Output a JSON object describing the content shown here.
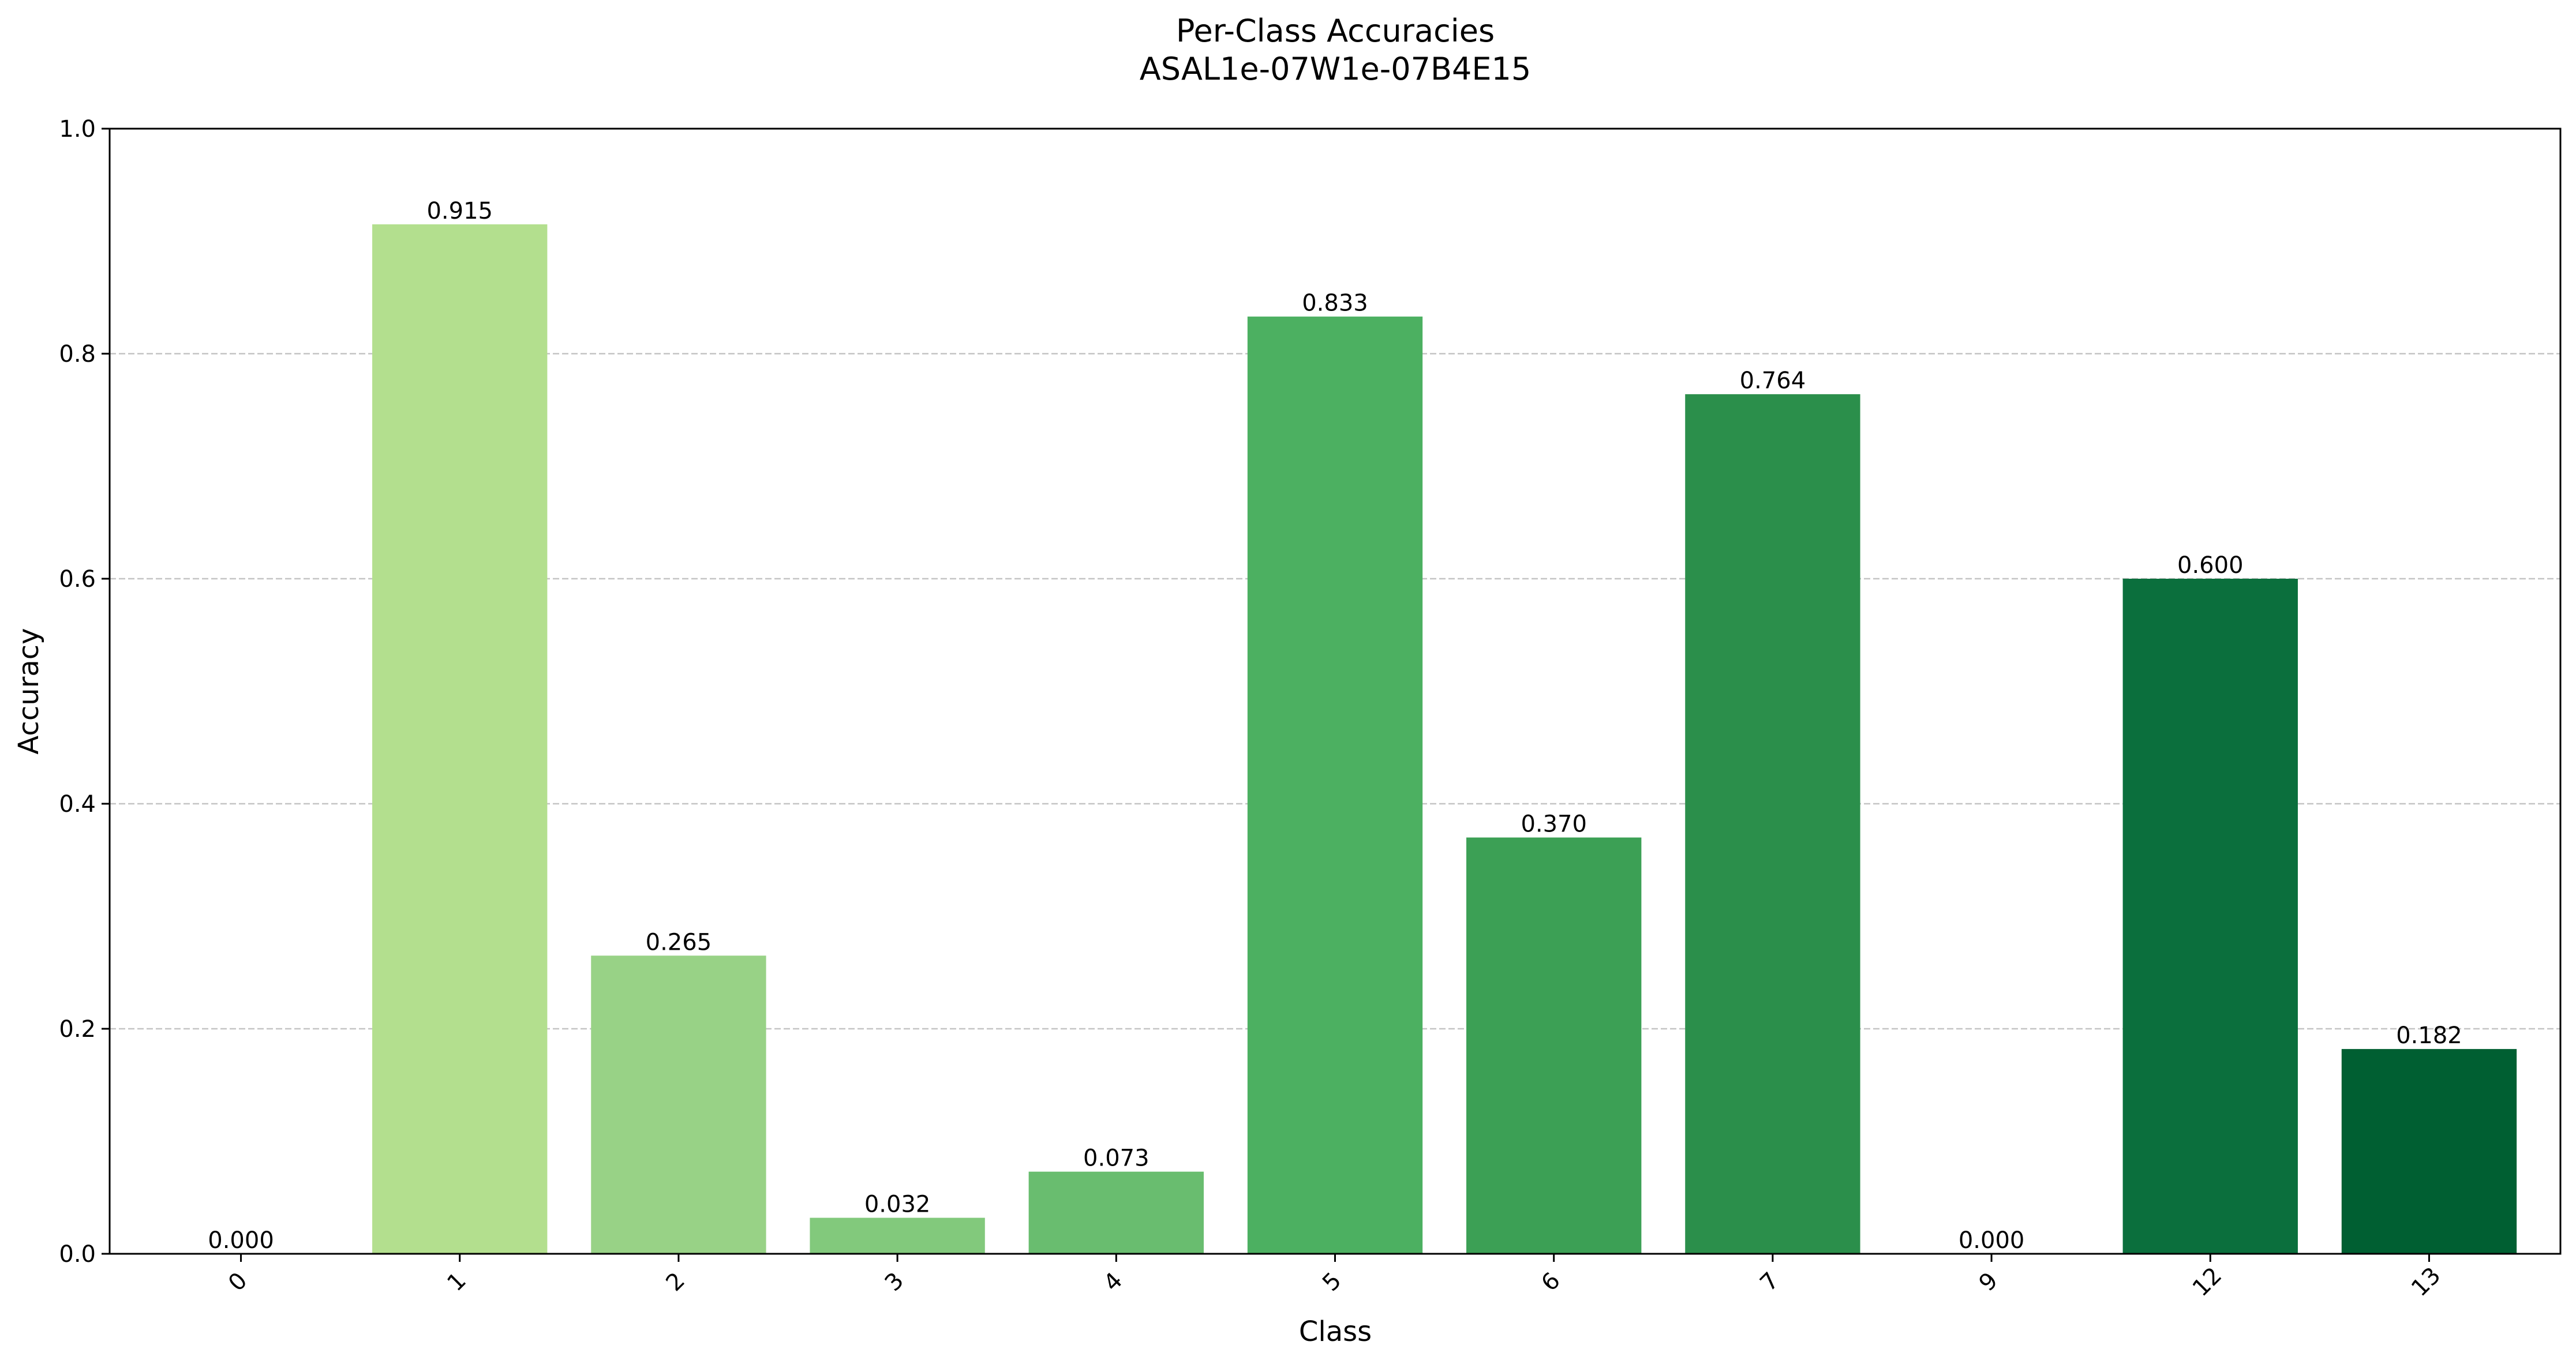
{
  "chart_data": {
    "type": "bar",
    "title": "Per-Class Accuracies",
    "subtitle": "ASAL1e-07W1e-07B4E15",
    "xlabel": "Class",
    "ylabel": "Accuracy",
    "categories": [
      "0",
      "1",
      "2",
      "3",
      "4",
      "5",
      "6",
      "7",
      "9",
      "12",
      "13"
    ],
    "values": [
      0.0,
      0.915,
      0.265,
      0.032,
      0.073,
      0.833,
      0.37,
      0.764,
      0.0,
      0.6,
      0.182
    ],
    "value_labels": [
      "0.000",
      "0.915",
      "0.265",
      "0.032",
      "0.073",
      "0.833",
      "0.370",
      "0.764",
      "0.000",
      "0.600",
      "0.182"
    ],
    "ylim": [
      0,
      1.0
    ],
    "yticks": [
      0.0,
      0.2,
      0.4,
      0.6,
      0.8,
      1.0
    ],
    "ytick_labels": [
      "0.0",
      "0.2",
      "0.4",
      "0.6",
      "0.8",
      "1.0"
    ],
    "grid": "y-dashed",
    "legend": "none",
    "colors": [
      "#f7fcb9",
      "#b3df8e",
      "#98d286",
      "#82c97c",
      "#69bd6f",
      "#4cb061",
      "#3ca055",
      "#2b8f4b",
      "#1c7d43",
      "#0b6f3d",
      "#005f32"
    ]
  }
}
